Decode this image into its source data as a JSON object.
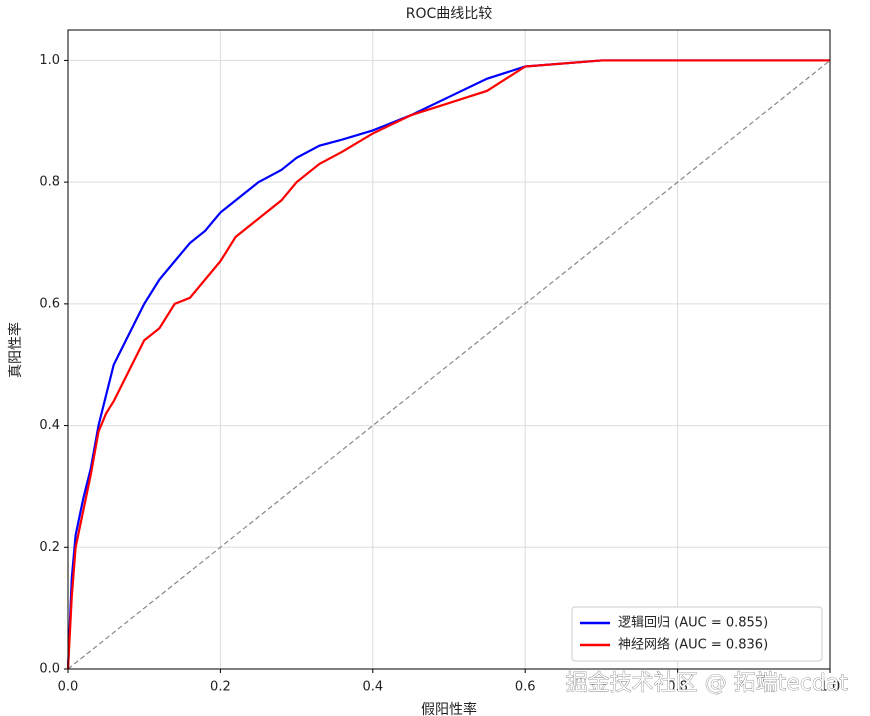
{
  "chart_data": {
    "type": "line",
    "title": "ROC曲线比较",
    "xlabel": "假阳性率",
    "ylabel": "真阳性率",
    "xlim": [
      0,
      1
    ],
    "ylim": [
      0,
      1.05
    ],
    "xticks": [
      {
        "value": 0,
        "label": "0.0"
      },
      0.2,
      0.4,
      0.6,
      0.8,
      {
        "value": 1,
        "label": "1.0"
      }
    ],
    "yticks": [
      {
        "value": 0,
        "label": "0.0"
      },
      0.2,
      0.4,
      0.6,
      0.8,
      {
        "value": 1,
        "label": "1.0"
      }
    ],
    "grid": true,
    "legend": "lower right",
    "series": [
      {
        "name": "逻辑回归 (AUC = 0.855)",
        "color": "#0000ff",
        "x": [
          0,
          0.005,
          0.01,
          0.02,
          0.03,
          0.04,
          0.05,
          0.06,
          0.08,
          0.1,
          0.12,
          0.14,
          0.16,
          0.18,
          0.2,
          0.22,
          0.25,
          0.28,
          0.3,
          0.33,
          0.36,
          0.4,
          0.45,
          0.5,
          0.55,
          0.6,
          0.7,
          0.8,
          1.0
        ],
        "values": [
          0,
          0.15,
          0.22,
          0.28,
          0.33,
          0.4,
          0.45,
          0.5,
          0.55,
          0.6,
          0.64,
          0.67,
          0.7,
          0.72,
          0.75,
          0.77,
          0.8,
          0.82,
          0.84,
          0.86,
          0.87,
          0.885,
          0.91,
          0.94,
          0.97,
          0.99,
          1.0,
          1.0,
          1.0
        ]
      },
      {
        "name": "神经网络 (AUC = 0.836)",
        "color": "#ff0000",
        "x": [
          0,
          0.005,
          0.01,
          0.02,
          0.03,
          0.04,
          0.05,
          0.06,
          0.08,
          0.1,
          0.12,
          0.14,
          0.16,
          0.18,
          0.2,
          0.22,
          0.25,
          0.28,
          0.3,
          0.33,
          0.36,
          0.4,
          0.45,
          0.5,
          0.55,
          0.6,
          0.7,
          0.8,
          1.0
        ],
        "values": [
          0,
          0.12,
          0.2,
          0.26,
          0.32,
          0.39,
          0.42,
          0.44,
          0.49,
          0.54,
          0.56,
          0.6,
          0.61,
          0.64,
          0.67,
          0.71,
          0.74,
          0.77,
          0.8,
          0.83,
          0.85,
          0.88,
          0.91,
          0.93,
          0.95,
          0.99,
          1.0,
          1.0,
          1.0
        ]
      }
    ],
    "watermark": "掘金技术社区 @ 拓端tecdat"
  }
}
